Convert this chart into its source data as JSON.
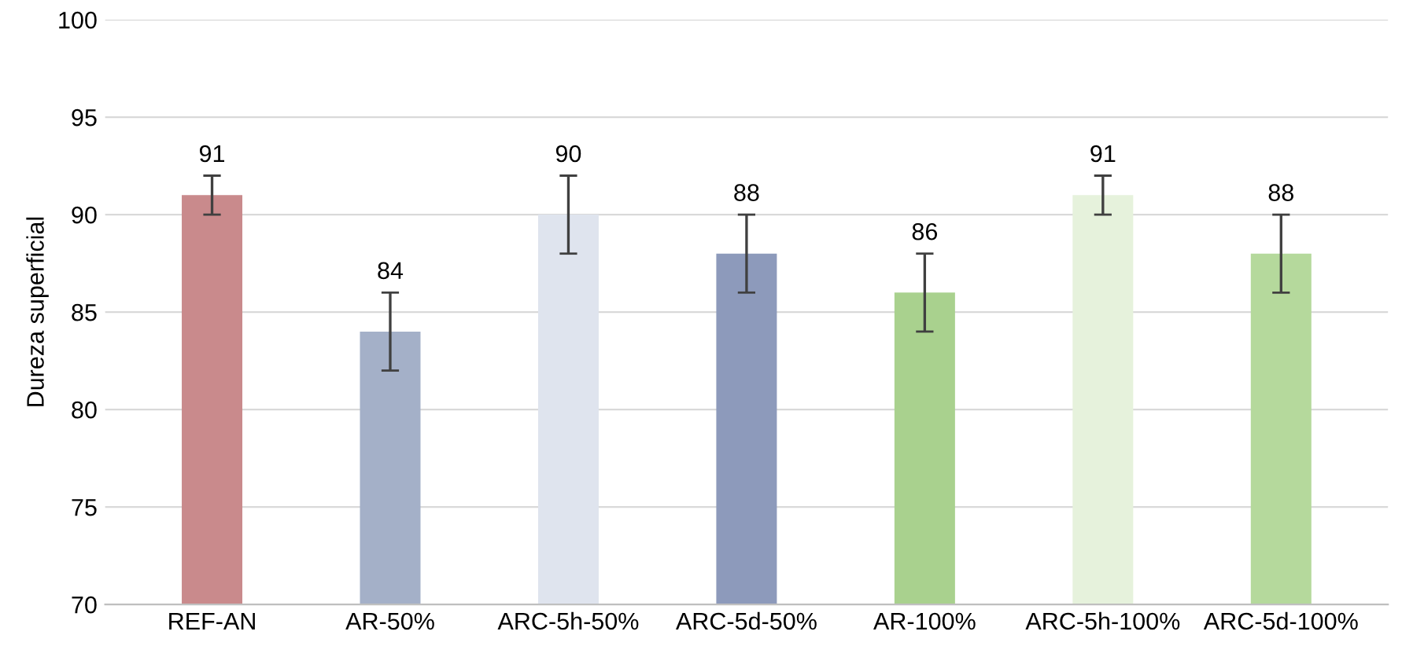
{
  "chart_data": {
    "type": "bar",
    "ylabel": "Dureza superficial",
    "categories": [
      "REF-AN",
      "AR-50%",
      "ARC-5h-50%",
      "ARC-5d-50%",
      "AR-100%",
      "ARC-5h-100%",
      "ARC-5d-100%"
    ],
    "values": [
      91,
      84,
      90,
      88,
      86,
      91,
      88
    ],
    "errors": [
      1,
      2,
      2,
      2,
      2,
      1,
      2
    ],
    "colors": [
      "#c98a8c",
      "#a4b0c8",
      "#dfe4ee",
      "#8d9abb",
      "#a9d18e",
      "#e6f2dc",
      "#b5d99c"
    ],
    "ylim": [
      70,
      100
    ],
    "yticks": [
      70,
      75,
      80,
      85,
      90,
      95,
      100
    ],
    "grid": "y",
    "data_labels": true
  }
}
